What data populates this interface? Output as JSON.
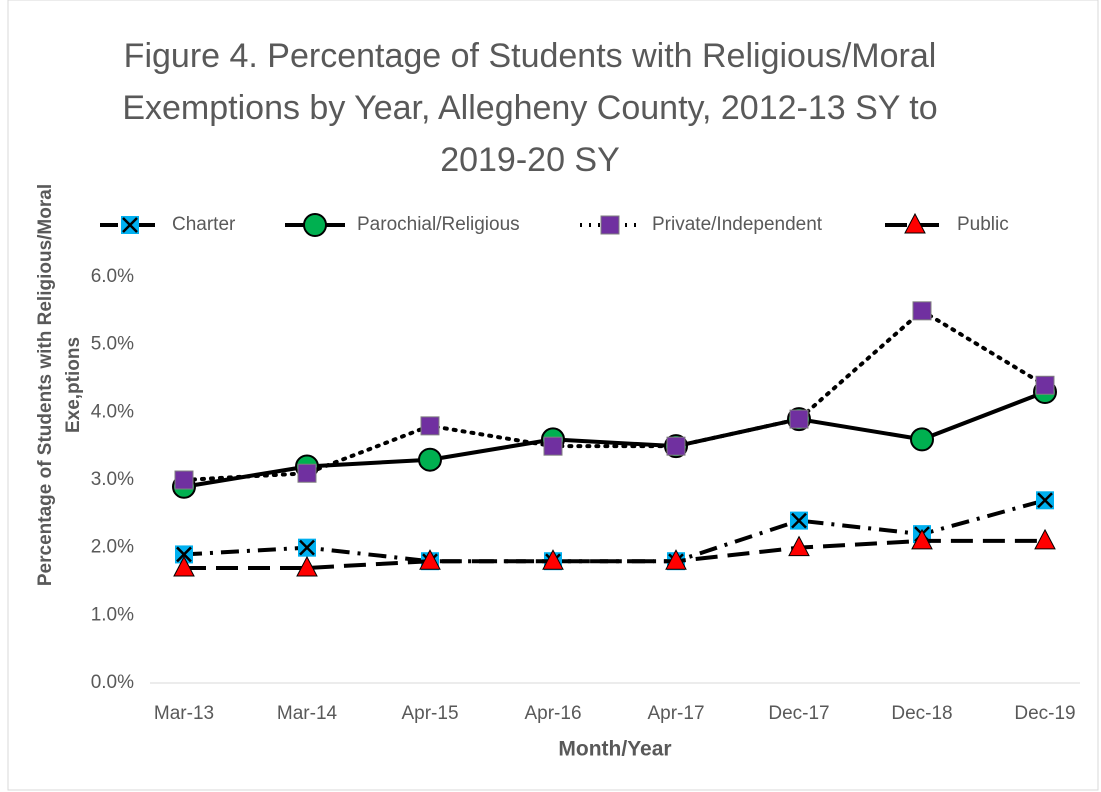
{
  "chart_data": {
    "type": "line",
    "title": "Figure 4. Percentage of Students with Religious/Moral Exemptions by Year, Allegheny County, 2012-13 SY to 2019-20 SY",
    "xlabel": "Month/Year",
    "ylabel": "Percentage of Students with Religious/Moral Exe,ptions",
    "categories": [
      "Mar-13",
      "Mar-14",
      "Apr-15",
      "Apr-16",
      "Apr-17",
      "Dec-17",
      "Dec-18",
      "Dec-19"
    ],
    "series": [
      {
        "name": "Charter",
        "color": "#00b0f0",
        "line_style": "dashdot",
        "marker": "x-square",
        "values": [
          1.9,
          2.0,
          1.8,
          1.8,
          1.8,
          2.4,
          2.2,
          2.7
        ]
      },
      {
        "name": "Parochial/Religious",
        "color": "#00b050",
        "line_style": "solid",
        "marker": "circle",
        "values": [
          2.9,
          3.2,
          3.3,
          3.6,
          3.5,
          3.9,
          3.6,
          4.3
        ]
      },
      {
        "name": "Private/Independent",
        "color": "#7030a0",
        "line_style": "dotted",
        "marker": "square",
        "values": [
          3.0,
          3.1,
          3.8,
          3.5,
          3.5,
          3.9,
          5.5,
          4.4
        ]
      },
      {
        "name": "Public",
        "color": "#ff0000",
        "line_style": "dashed",
        "marker": "triangle",
        "values": [
          1.7,
          1.7,
          1.8,
          1.8,
          1.8,
          2.0,
          2.1,
          2.1
        ]
      }
    ],
    "ylim": [
      0,
      6
    ],
    "yticks": [
      {
        "value": 0,
        "label": "0.0%"
      },
      {
        "value": 1,
        "label": "1.0%"
      },
      {
        "value": 2,
        "label": "2.0%"
      },
      {
        "value": 3,
        "label": "3.0%"
      },
      {
        "value": 4,
        "label": "4.0%"
      },
      {
        "value": 5,
        "label": "5.0%"
      },
      {
        "value": 6,
        "label": "6.0%"
      }
    ],
    "legend": "top"
  }
}
